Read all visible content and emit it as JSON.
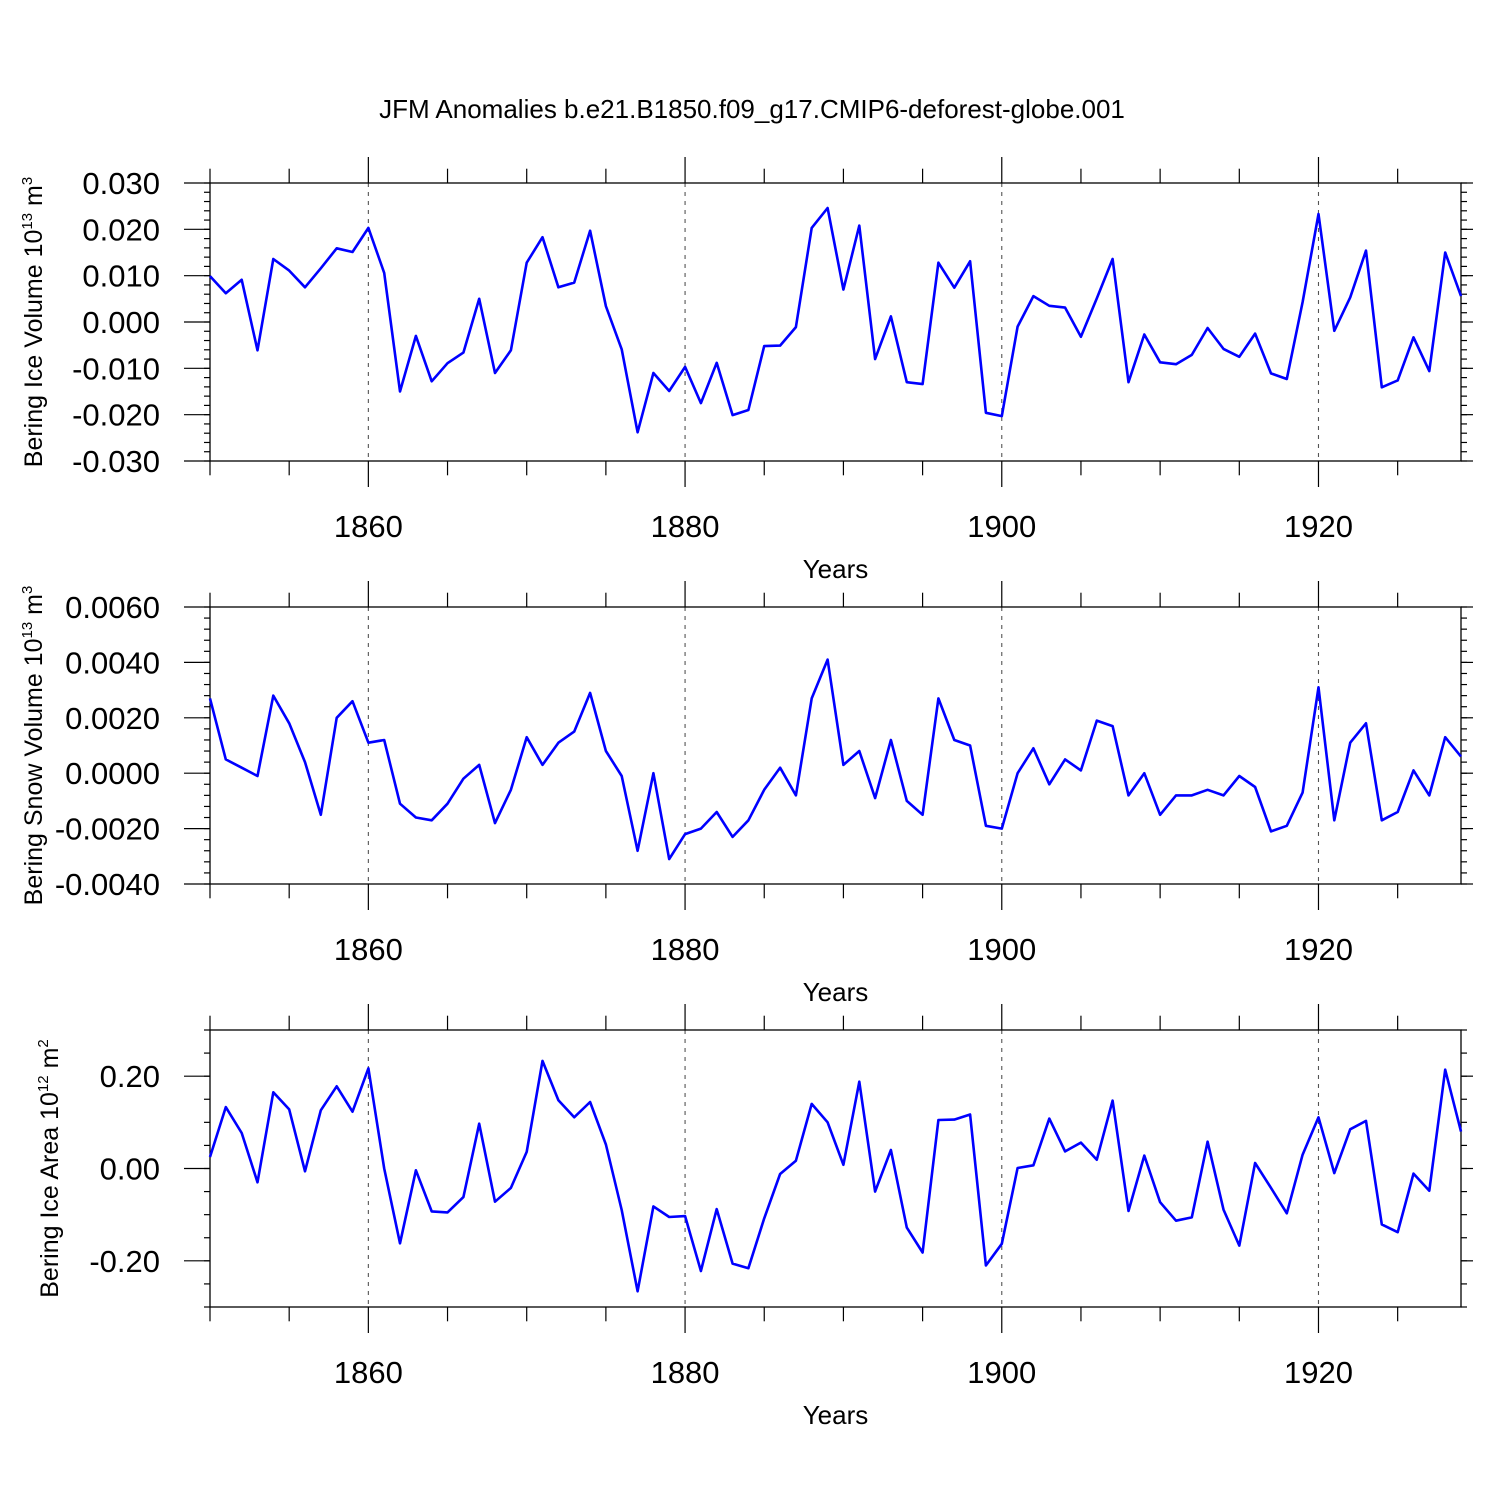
{
  "title": "JFM Anomalies b.e21.B1850.f09_g17.CMIP6-deforest-globe.001",
  "chart_data": [
    {
      "type": "line",
      "ylabel": "Bering Ice Volume 10",
      "ylabel_exp": "13",
      "ylabel_unit": "m",
      "ylabel_unit_exp": "3",
      "xlabel": "Years",
      "xlim": [
        1850,
        1929
      ],
      "ylim": [
        -0.03,
        0.03
      ],
      "yticks": [
        -0.03,
        -0.02,
        -0.01,
        0.0,
        0.01,
        0.02,
        0.03
      ],
      "ytick_labels": [
        "-0.030",
        "-0.020",
        "-0.010",
        "0.000",
        "0.010",
        "0.020",
        "0.030"
      ],
      "yminor": 0.002,
      "xticks": [
        1860,
        1880,
        1900,
        1920
      ],
      "xtick_labels": [
        "1860",
        "1880",
        "1900",
        "1920"
      ],
      "xminor": 5,
      "color": "#0000ff",
      "series": [
        {
          "name": "Bering Ice Volume",
          "x_start": 1850,
          "values": [
            0.0099,
            0.0062,
            0.0091,
            -0.0061,
            0.0136,
            0.0111,
            0.0075,
            0.0116,
            0.0159,
            0.0151,
            0.0203,
            0.0106,
            -0.015,
            -0.003,
            -0.0128,
            -0.0089,
            -0.0066,
            0.005,
            -0.011,
            -0.0061,
            0.0128,
            0.0183,
            0.0075,
            0.0085,
            0.0197,
            0.0034,
            -0.0059,
            -0.0238,
            -0.011,
            -0.0149,
            -0.0097,
            -0.0175,
            -0.0088,
            -0.0201,
            -0.019,
            -0.0052,
            -0.0051,
            -0.0011,
            0.0203,
            0.0246,
            0.007,
            0.0208,
            -0.008,
            0.0012,
            -0.013,
            -0.0134,
            0.0128,
            0.0074,
            0.0131,
            -0.0196,
            -0.0203,
            -0.001,
            0.0056,
            0.0035,
            0.0031,
            -0.0032,
            0.0051,
            0.0136,
            -0.013,
            -0.0027,
            -0.0087,
            -0.0091,
            -0.0071,
            -0.0013,
            -0.0058,
            -0.0075,
            -0.0025,
            -0.0111,
            -0.0123,
            0.0043,
            0.0233,
            -0.0019,
            0.0053,
            0.0154,
            -0.0141,
            -0.0126,
            -0.0033,
            -0.0106,
            0.015,
            0.0056
          ]
        }
      ]
    },
    {
      "type": "line",
      "ylabel": "Bering Snow Volume 10",
      "ylabel_exp": "13",
      "ylabel_unit": "m",
      "ylabel_unit_exp": "3",
      "xlabel": "Years",
      "xlim": [
        1850,
        1929
      ],
      "ylim": [
        -0.004,
        0.006
      ],
      "yticks": [
        -0.004,
        -0.002,
        0.0,
        0.002,
        0.004,
        0.006
      ],
      "ytick_labels": [
        "-0.0040",
        "-0.0020",
        "0.0000",
        "0.0020",
        "0.0040",
        "0.0060"
      ],
      "yminor": 0.0004,
      "xticks": [
        1860,
        1880,
        1900,
        1920
      ],
      "xtick_labels": [
        "1860",
        "1880",
        "1900",
        "1920"
      ],
      "xminor": 5,
      "color": "#0000ff",
      "series": [
        {
          "name": "Bering Snow Volume",
          "x_start": 1850,
          "values": [
            0.0027,
            0.0005,
            0.0002,
            -0.0001,
            0.0028,
            0.0018,
            0.0004,
            -0.0015,
            0.002,
            0.0026,
            0.0011,
            0.0012,
            -0.0011,
            -0.0016,
            -0.0017,
            -0.0011,
            -0.0002,
            0.0003,
            -0.0018,
            -0.0006,
            0.0013,
            0.0003,
            0.0011,
            0.0015,
            0.0029,
            0.0008,
            -0.0001,
            -0.0028,
            0.0,
            -0.0031,
            -0.0022,
            -0.002,
            -0.0014,
            -0.0023,
            -0.0017,
            -0.0006,
            0.0002,
            -0.0008,
            0.0027,
            0.0041,
            0.0003,
            0.0008,
            -0.0009,
            0.0012,
            -0.001,
            -0.0015,
            0.0027,
            0.0012,
            0.001,
            -0.0019,
            -0.002,
            0.0,
            0.0009,
            -0.0004,
            0.0005,
            0.0001,
            0.0019,
            0.0017,
            -0.0008,
            0.0,
            -0.0015,
            -0.0008,
            -0.0008,
            -0.0006,
            -0.0008,
            -0.0001,
            -0.0005,
            -0.0021,
            -0.0019,
            -0.0007,
            0.0031,
            -0.0017,
            0.0011,
            0.0018,
            -0.0017,
            -0.0014,
            0.0001,
            -0.0008,
            0.0013,
            0.0006
          ]
        }
      ]
    },
    {
      "type": "line",
      "ylabel": "Bering Ice Area 10",
      "ylabel_exp": "12",
      "ylabel_unit": "m",
      "ylabel_unit_exp": "2",
      "xlabel": "Years",
      "xlim": [
        1850,
        1929
      ],
      "ylim": [
        -0.3,
        0.3
      ],
      "yticks": [
        -0.2,
        0.0,
        0.2
      ],
      "ytick_labels": [
        "-0.20",
        "0.00",
        "0.20"
      ],
      "yminor": 0.05,
      "xticks": [
        1860,
        1880,
        1900,
        1920
      ],
      "xtick_labels": [
        "1860",
        "1880",
        "1900",
        "1920"
      ],
      "xminor": 5,
      "color": "#0000ff",
      "series": [
        {
          "name": "Bering Ice Area",
          "x_start": 1850,
          "values": [
            0.025,
            0.133,
            0.077,
            -0.03,
            0.165,
            0.128,
            -0.006,
            0.126,
            0.178,
            0.123,
            0.217,
            0.0,
            -0.162,
            -0.004,
            -0.093,
            -0.095,
            -0.062,
            0.097,
            -0.072,
            -0.042,
            0.036,
            0.233,
            0.148,
            0.111,
            0.144,
            0.052,
            -0.09,
            -0.266,
            -0.082,
            -0.105,
            -0.103,
            -0.222,
            -0.088,
            -0.206,
            -0.216,
            -0.108,
            -0.012,
            0.017,
            0.14,
            0.1,
            0.008,
            0.188,
            -0.05,
            0.04,
            -0.128,
            -0.182,
            0.105,
            0.106,
            0.117,
            -0.21,
            -0.163,
            0.001,
            0.007,
            0.108,
            0.037,
            0.056,
            0.019,
            0.147,
            -0.092,
            0.028,
            -0.073,
            -0.113,
            -0.106,
            0.058,
            -0.089,
            -0.167,
            0.012,
            -0.042,
            -0.097,
            0.03,
            0.111,
            -0.01,
            0.085,
            0.103,
            -0.121,
            -0.138,
            -0.011,
            -0.048,
            0.214,
            0.08
          ]
        }
      ]
    }
  ]
}
